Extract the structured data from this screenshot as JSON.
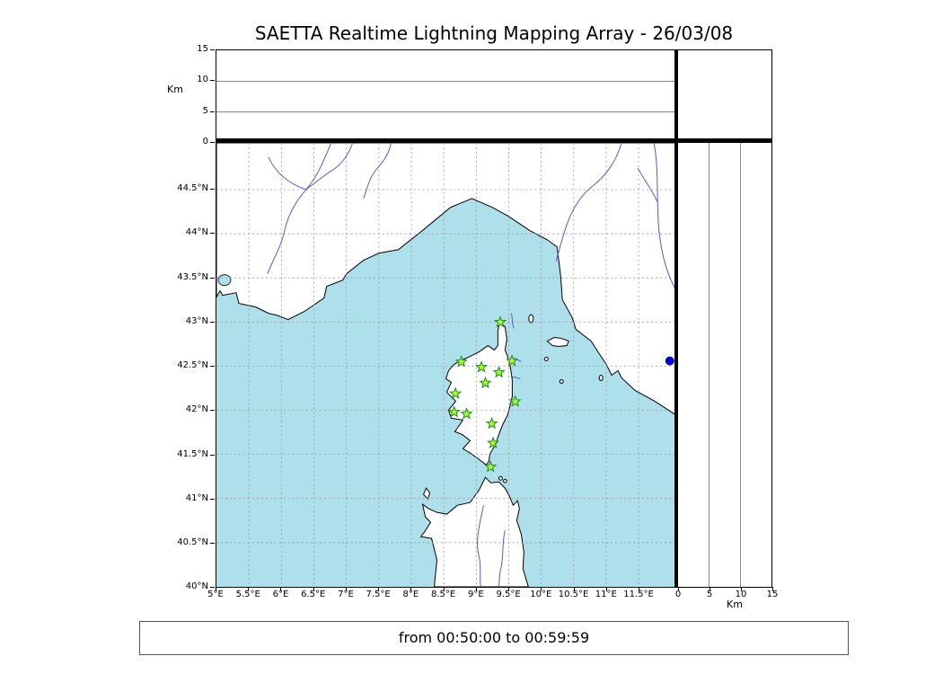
{
  "title": "SAETTA Realtime Lightning Mapping Array - 26/03/08",
  "footer": {
    "text": "from 00:50:00 to 00:59:59"
  },
  "colors": {
    "sea": "#aee0ec",
    "grid": "#999999",
    "river": "#5a5acb",
    "star_fill": "#adff2f",
    "star_stroke": "#1f8a1f",
    "dot": "#0000cc"
  },
  "axes": {
    "alt_top": {
      "unit_label": "Km",
      "ticks": [
        "15",
        "10",
        "5",
        "0"
      ]
    },
    "alt_right": {
      "unit_label": "Km",
      "ticks": [
        "0",
        "5",
        "10",
        "15"
      ]
    },
    "lat": {
      "ticks": [
        "44.5°N",
        "44°N",
        "43.5°N",
        "43°N",
        "42.5°N",
        "42°N",
        "41.5°N",
        "41°N",
        "40.5°N",
        "40°N"
      ]
    },
    "lon": {
      "ticks": [
        "5°E",
        "5.5°E",
        "6°E",
        "6.5°E",
        "7°E",
        "7.5°E",
        "8°E",
        "8.5°E",
        "9°E",
        "9.5°E",
        "10°E",
        "10.5°E",
        "11°E",
        "11.5°E"
      ]
    }
  },
  "chart_data": {
    "type": "scatter",
    "title": "SAETTA Realtime Lightning Mapping Array - 26/03/08",
    "map": {
      "lon_range": [
        5,
        12.066
      ],
      "lat_range": [
        40,
        45.031
      ]
    },
    "altitude_axis": {
      "range_km": [
        0,
        15
      ],
      "ticks": [
        0,
        5,
        10,
        15
      ],
      "unit": "Km"
    },
    "stations": [
      {
        "lon": 9.37,
        "lat": 43.0
      },
      {
        "lon": 8.77,
        "lat": 42.55
      },
      {
        "lon": 9.08,
        "lat": 42.49
      },
      {
        "lon": 9.55,
        "lat": 42.56
      },
      {
        "lon": 9.35,
        "lat": 42.43
      },
      {
        "lon": 9.14,
        "lat": 42.31
      },
      {
        "lon": 8.68,
        "lat": 42.19
      },
      {
        "lon": 9.6,
        "lat": 42.1
      },
      {
        "lon": 8.66,
        "lat": 41.98
      },
      {
        "lon": 8.85,
        "lat": 41.96
      },
      {
        "lon": 9.24,
        "lat": 41.85
      },
      {
        "lon": 9.26,
        "lat": 41.63
      },
      {
        "lon": 9.22,
        "lat": 41.36
      }
    ],
    "detection": {
      "lon": 11.98,
      "lat": 42.56
    },
    "time_window": "from 00:50:00 to 00:59:59"
  }
}
